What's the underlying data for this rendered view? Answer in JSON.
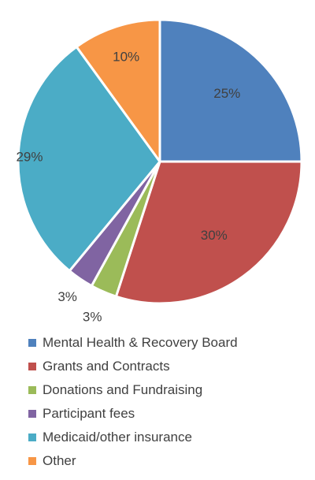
{
  "chart_data": {
    "type": "pie",
    "slices": [
      {
        "label": "Mental Health & Recovery Board",
        "value": 25,
        "display": "25%",
        "color": "#4F81BD"
      },
      {
        "label": "Grants and Contracts",
        "value": 30,
        "display": "30%",
        "color": "#C0504D"
      },
      {
        "label": "Donations and Fundraising",
        "value": 3,
        "display": "3%",
        "color": "#9BBB59"
      },
      {
        "label": "Participant fees",
        "value": 3,
        "display": "3%",
        "color": "#8064A2"
      },
      {
        "label": "Medicaid/other insurance",
        "value": 29,
        "display": "29%",
        "color": "#4BACC6"
      },
      {
        "label": "Other",
        "value": 10,
        "display": "10%",
        "color": "#F79646"
      }
    ],
    "start_angle": "12 o'clock",
    "direction": "clockwise",
    "legend_position": "bottom"
  }
}
